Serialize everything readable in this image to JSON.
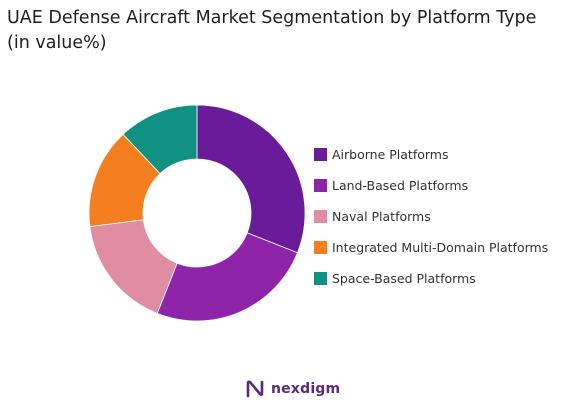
{
  "chart_data": {
    "type": "pie",
    "style": "donut",
    "title_line1": "UAE Defense Aircraft Market Segmentation by Platform Type",
    "title_line2": "(in value%)",
    "categories": [
      "Airborne Platforms",
      "Land-Based Platforms",
      "Naval Platforms",
      "Integrated Multi-Domain Platforms",
      "Space-Based Platforms"
    ],
    "values": [
      31,
      25,
      17,
      15,
      12
    ],
    "colors": [
      "#6a1b9a",
      "#8e24aa",
      "#e08ca3",
      "#f57f20",
      "#0f9281"
    ],
    "legend_position": "right"
  },
  "brand": {
    "name": "nexdigm",
    "accent": "#5a2a82"
  }
}
